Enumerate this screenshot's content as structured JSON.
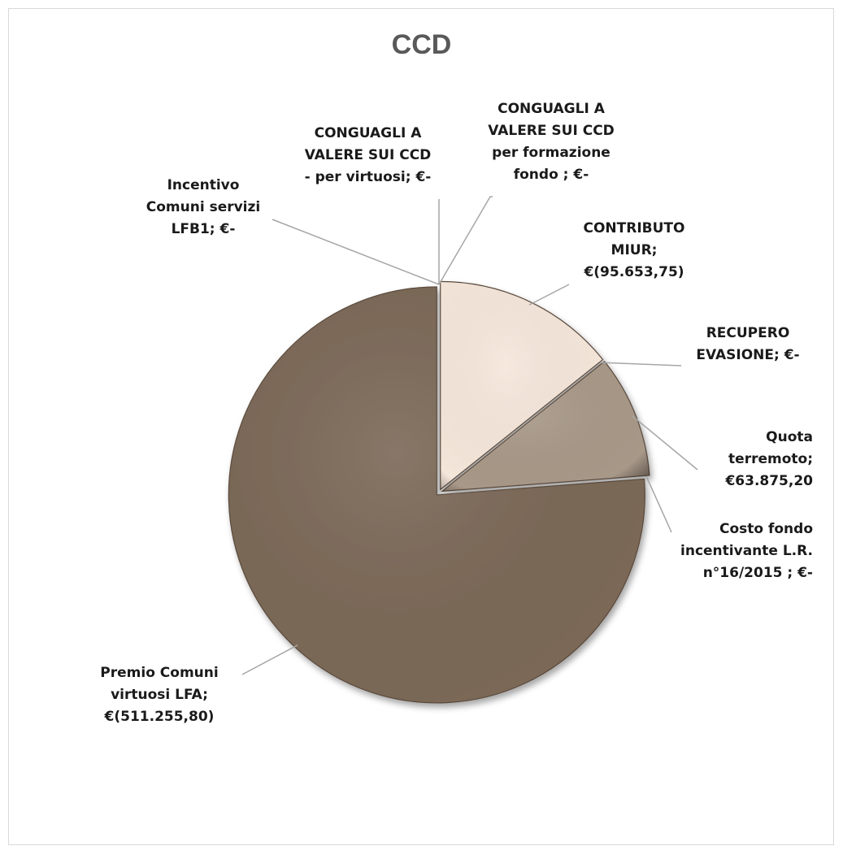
{
  "chart_data": {
    "type": "pie",
    "title": "CCD",
    "slices": [
      {
        "label": "CONGUAGLI A VALERE SUI CCD per formazione fondo",
        "value": 0,
        "value_text": "€-",
        "label_text": "CONGUAGLI A\nVALERE SUI CCD\nper formazione\nfondo ;  €-",
        "color": "#f3e6da"
      },
      {
        "label": "CONTRIBUTO MIUR",
        "value": -95653.75,
        "value_text": "€(95.653,75)",
        "label_text": "CONTRIBUTO\nMIUR;\n€(95.653,75)",
        "color": "#f5e6da"
      },
      {
        "label": "RECUPERO EVASIONE",
        "value": 0,
        "value_text": "€-",
        "label_text": "RECUPERO\nEVASIONE;  €-",
        "color": "#d8c8b8"
      },
      {
        "label": "Quota terremoto",
        "value": 63875.2,
        "value_text": "€63.875,20",
        "label_text": "Quota\nterremoto;\n€63.875,20",
        "color": "#a89888"
      },
      {
        "label": "Costo fondo incentivante L.R. n°16/2015",
        "value": 0,
        "value_text": "€-",
        "label_text": "Costo fondo\nincentivante L.R.\nn°16/2015 ;  €-",
        "color": "#8e7e6e"
      },
      {
        "label": "Premio Comuni virtuosi LFA",
        "value": -511255.8,
        "value_text": "€(511.255,80)",
        "label_text": "Premio Comuni\nvirtuosi LFA;\n€(511.255,80)",
        "color": "#7b6857"
      },
      {
        "label": "Incentivo Comuni servizi LFB1",
        "value": 0,
        "value_text": "€-",
        "label_text": "Incentivo\nComuni servizi\nLFB1;  €-",
        "color": "#6e5c4c"
      },
      {
        "label": "CONGUAGLI A VALERE SUI CCD - per virtuosi",
        "value": 0,
        "value_text": "€-",
        "label_text": "CONGUAGLI A\nVALERE SUI CCD\n- per virtuosi;  €-",
        "color": "#6e5c4c"
      }
    ]
  },
  "colors": {
    "premio": "#7b6857",
    "contributo": "#f5e6da",
    "quota": "#a89888",
    "title": "#595959",
    "leader": "#a6a6a6"
  }
}
